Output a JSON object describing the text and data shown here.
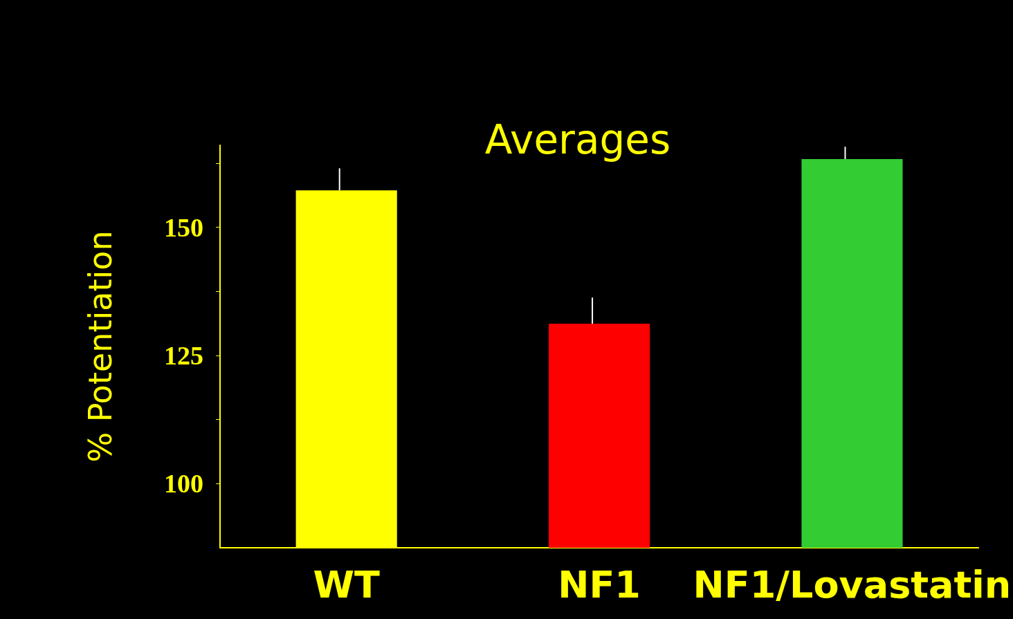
{
  "chart_data": {
    "type": "bar",
    "title": "Averages",
    "ylabel": "% Potentiation",
    "categories": [
      "WT",
      "NF1",
      "NF1/Lovastatin"
    ],
    "values": [
      157.2,
      131.2,
      163.3
    ],
    "colors": [
      "#ffff00",
      "#ff0000",
      "#33cc33"
    ],
    "errors": [
      [
        157.2,
        161.5
      ],
      [
        131.2,
        136.3
      ],
      [
        163.3,
        165.7
      ]
    ],
    "ylim": [
      87.5,
      166
    ],
    "yticks": [
      100,
      {
        "value": 112.5,
        "label": null
      },
      125,
      {
        "value": 137.5,
        "label": null
      },
      150,
      {
        "value": 162.5,
        "label": null
      }
    ],
    "grid": false
  }
}
